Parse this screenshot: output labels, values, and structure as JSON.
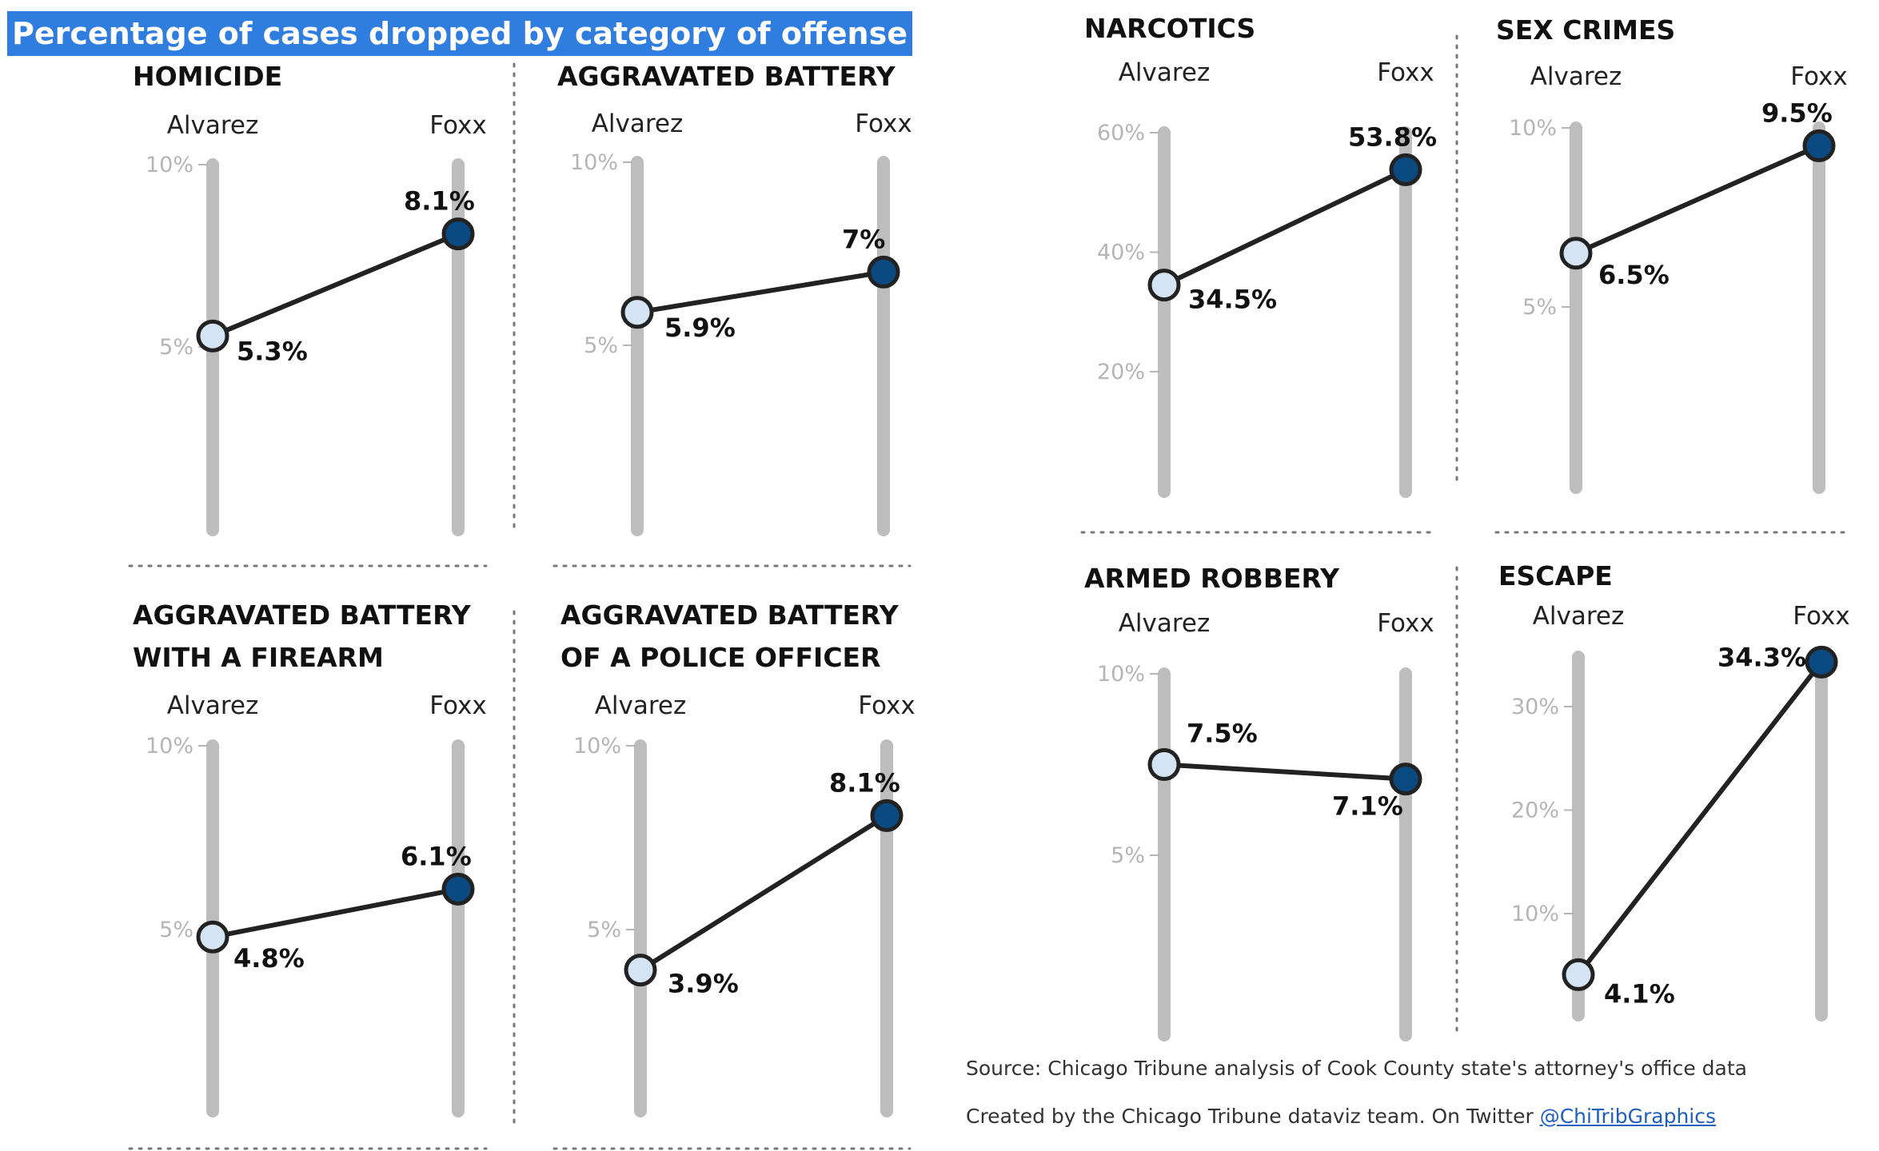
{
  "title": "Percentage of cases dropped by category of offense",
  "chart_data": [
    {
      "type": "slope",
      "title_lines": [
        "HOMICIDE"
      ],
      "columns": [
        "Alvarez",
        "Foxx"
      ],
      "ylim": [
        0,
        10
      ],
      "ticks": [
        {
          "value": 10,
          "label": "10%"
        },
        {
          "value": 5,
          "label": "5%"
        }
      ],
      "values": [
        5.3,
        8.1
      ],
      "labels": [
        "5.3%",
        "8.1%"
      ]
    },
    {
      "type": "slope",
      "title_lines": [
        "AGGRAVATED BATTERY"
      ],
      "columns": [
        "Alvarez",
        "Foxx"
      ],
      "ylim": [
        0,
        10
      ],
      "ticks": [
        {
          "value": 10,
          "label": "10%"
        },
        {
          "value": 5,
          "label": "5%"
        }
      ],
      "values": [
        5.9,
        7.0
      ],
      "labels": [
        "5.9%",
        "7%"
      ]
    },
    {
      "type": "slope",
      "title_lines": [
        "NARCOTICS"
      ],
      "columns": [
        "Alvarez",
        "Foxx"
      ],
      "ylim": [
        0,
        60
      ],
      "ticks": [
        {
          "value": 60,
          "label": "60%"
        },
        {
          "value": 40,
          "label": "40%"
        },
        {
          "value": 20,
          "label": "20%"
        }
      ],
      "values": [
        34.5,
        53.8
      ],
      "labels": [
        "34.5%",
        "53.8%"
      ]
    },
    {
      "type": "slope",
      "title_lines": [
        "SEX CRIMES"
      ],
      "columns": [
        "Alvarez",
        "Foxx"
      ],
      "ylim": [
        0,
        10
      ],
      "ticks": [
        {
          "value": 10,
          "label": "10%"
        },
        {
          "value": 5,
          "label": "5%"
        }
      ],
      "values": [
        6.5,
        9.5
      ],
      "labels": [
        "6.5%",
        "9.5%"
      ]
    },
    {
      "type": "slope",
      "title_lines": [
        "AGGRAVATED BATTERY",
        "WITH A FIREARM"
      ],
      "columns": [
        "Alvarez",
        "Foxx"
      ],
      "ylim": [
        0,
        10
      ],
      "ticks": [
        {
          "value": 10,
          "label": "10%"
        },
        {
          "value": 5,
          "label": "5%"
        }
      ],
      "values": [
        4.8,
        6.1
      ],
      "labels": [
        "4.8%",
        "6.1%"
      ]
    },
    {
      "type": "slope",
      "title_lines": [
        "AGGRAVATED BATTERY",
        "OF A POLICE OFFICER"
      ],
      "columns": [
        "Alvarez",
        "Foxx"
      ],
      "ylim": [
        0,
        10
      ],
      "ticks": [
        {
          "value": 10,
          "label": "10%"
        },
        {
          "value": 5,
          "label": "5%"
        }
      ],
      "values": [
        3.9,
        8.1
      ],
      "labels": [
        "3.9%",
        "8.1%"
      ]
    },
    {
      "type": "slope",
      "title_lines": [
        "ARMED ROBBERY"
      ],
      "columns": [
        "Alvarez",
        "Foxx"
      ],
      "ylim": [
        0,
        10
      ],
      "ticks": [
        {
          "value": 10,
          "label": "10%"
        },
        {
          "value": 5,
          "label": "5%"
        }
      ],
      "values": [
        7.5,
        7.1
      ],
      "labels": [
        "7.5%",
        "7.1%"
      ]
    },
    {
      "type": "slope",
      "title_lines": [
        "ESCAPE"
      ],
      "columns": [
        "Alvarez",
        "Foxx"
      ],
      "ylim": [
        0,
        35
      ],
      "ticks": [
        {
          "value": 30,
          "label": "30%"
        },
        {
          "value": 20,
          "label": "20%"
        },
        {
          "value": 10,
          "label": "10%"
        }
      ],
      "values": [
        4.1,
        34.3
      ],
      "labels": [
        "4.1%",
        "34.3%"
      ]
    }
  ],
  "footer": {
    "source": "Source: Chicago Tribune analysis of Cook County state's attorney's office data",
    "credit": "Created by the Chicago Tribune dataviz team. On Twitter ",
    "twitter": "@ChiTribGraphics"
  },
  "colors": {
    "track": "#bdbdbe",
    "line": "#222222",
    "alvarez_fill": "#d4e4f2",
    "foxx_fill": "#0b4a80",
    "tick": "#b5b5b5",
    "divider": "#777777",
    "title_bg": "#2f7ddf"
  }
}
